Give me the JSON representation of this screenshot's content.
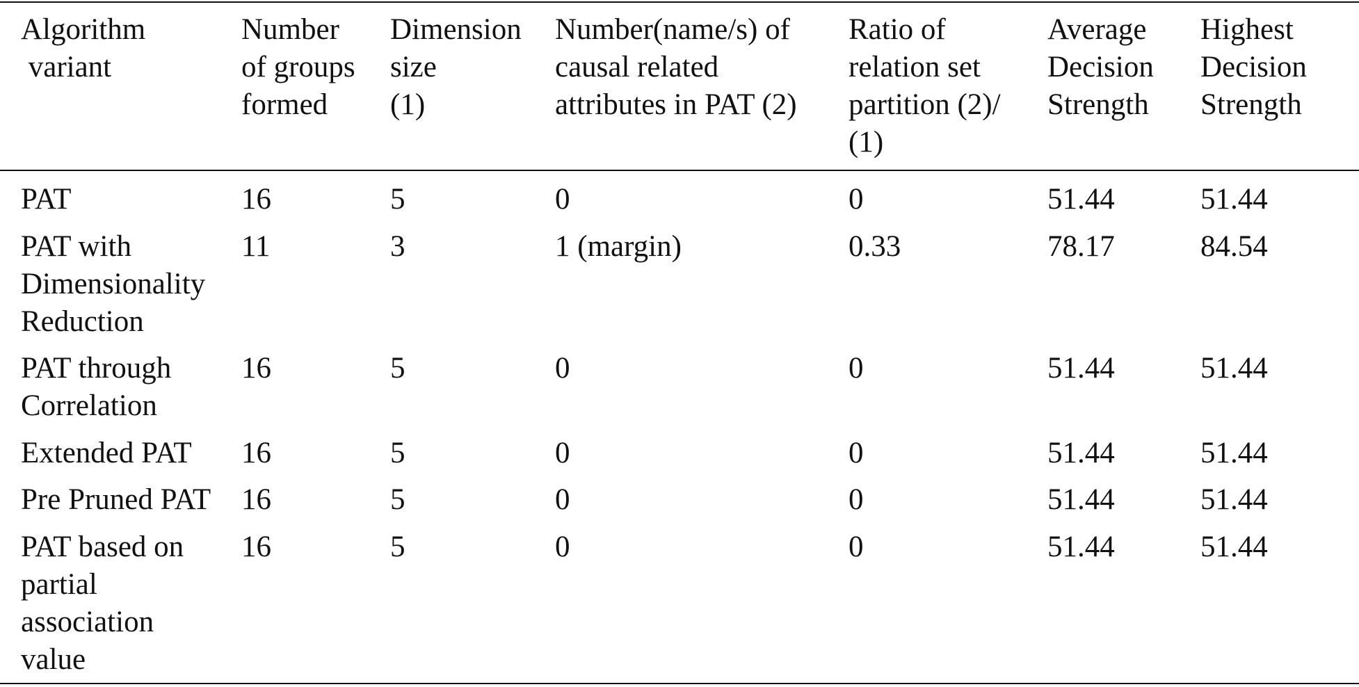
{
  "table": {
    "header": [
      [
        "Algorithm",
        " variant"
      ],
      [
        "Number",
        "of groups",
        "formed"
      ],
      [
        "Dimension",
        "size",
        "(1)"
      ],
      [
        "Number(name/s) of",
        "causal related",
        "attributes in PAT (2)"
      ],
      [
        "Ratio of",
        "relation set",
        "partition (2)/",
        "(1)"
      ],
      [
        "Average",
        "Decision",
        "Strength"
      ],
      [
        "Highest",
        "Decision",
        "Strength"
      ]
    ],
    "rows": [
      [
        "PAT",
        16,
        5,
        0,
        0,
        51.44,
        51.44
      ],
      [
        [
          "PAT with",
          "Dimensionality",
          "Reduction"
        ],
        11,
        3,
        "1 (margin)",
        0.33,
        78.17,
        84.54
      ],
      [
        [
          "PAT through",
          "Correlation"
        ],
        16,
        5,
        0,
        0,
        51.44,
        51.44
      ],
      [
        "Extended PAT",
        16,
        5,
        0,
        0,
        51.44,
        51.44
      ],
      [
        "Pre Pruned PAT",
        16,
        5,
        0,
        0,
        51.44,
        51.44
      ],
      [
        [
          "PAT based on",
          "partial",
          "association",
          "value"
        ],
        16,
        5,
        0,
        0,
        51.44,
        51.44
      ]
    ]
  }
}
